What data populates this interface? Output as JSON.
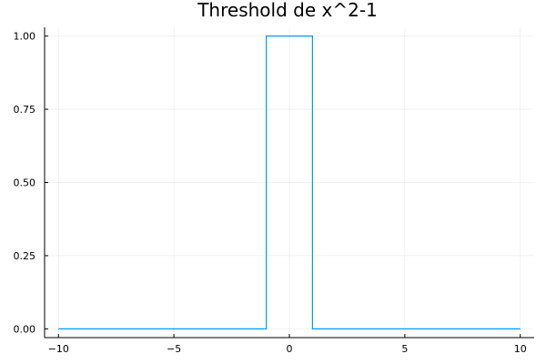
{
  "chart_data": {
    "type": "line",
    "title": "Threshold de x^2-1",
    "xlabel": "",
    "ylabel": "",
    "xlim": [
      -10.6,
      10.6
    ],
    "ylim": [
      -0.03,
      1.03
    ],
    "grid": true,
    "legend": "none",
    "x_ticks": [
      -10,
      -5,
      0,
      5,
      10
    ],
    "x_tick_labels": [
      "−10",
      "−5",
      "0",
      "5",
      "10"
    ],
    "y_ticks": [
      0.0,
      0.25,
      0.5,
      0.75,
      1.0
    ],
    "y_tick_labels": [
      "0.00",
      "0.25",
      "0.50",
      "0.75",
      "1.00"
    ],
    "series": [
      {
        "color": "#009AFA",
        "x": [
          -10,
          -1,
          -1,
          1,
          1,
          10
        ],
        "y": [
          0,
          0,
          1,
          1,
          0,
          0
        ]
      }
    ]
  }
}
